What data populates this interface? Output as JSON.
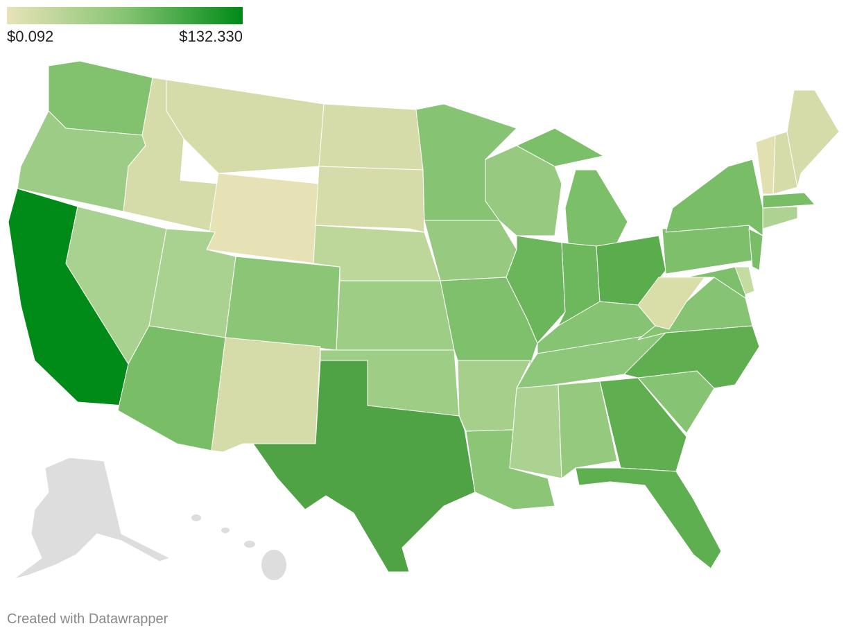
{
  "legend": {
    "min": {
      "value": 0.092,
      "label": "$0.092"
    },
    "max": {
      "value": 132.33,
      "label": "$132.330"
    },
    "colors": [
      "#e8e3b8",
      "#86c472",
      "#008a17"
    ]
  },
  "footer": "Created with Datawrapper"
}
